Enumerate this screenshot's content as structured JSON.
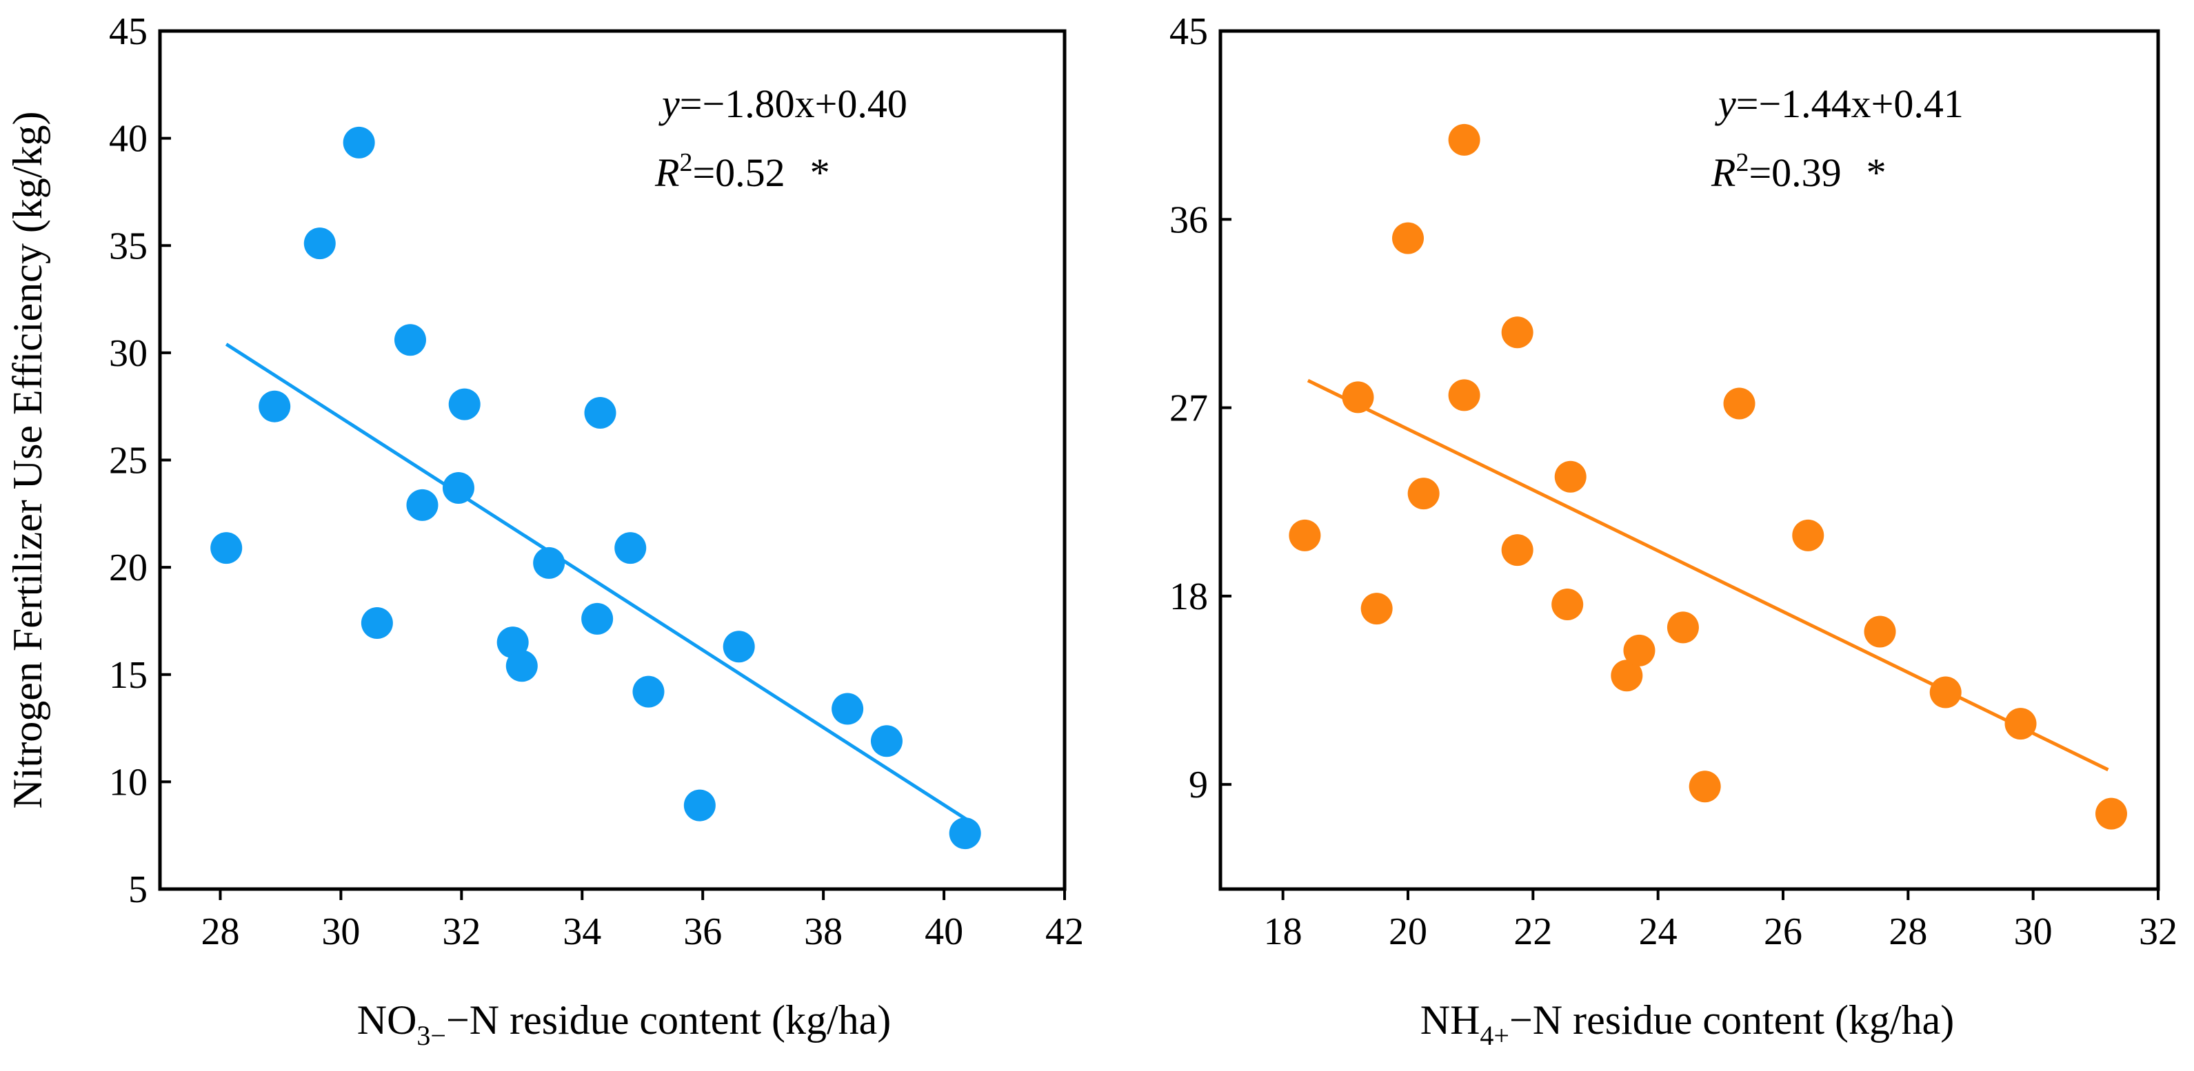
{
  "chart_data": [
    {
      "type": "scatter",
      "title": "",
      "xlabel_parts": [
        "NO",
        "3−",
        "−N residue content (kg/ha)"
      ],
      "ylabel": "Nitrogen Fertilizer Use Efficiency (kg/kg)",
      "xlim": [
        27,
        42
      ],
      "ylim": [
        5,
        45
      ],
      "xticks": [
        28,
        30,
        32,
        34,
        36,
        38,
        40,
        42
      ],
      "yticks": [
        5,
        10,
        15,
        20,
        25,
        30,
        35,
        40,
        45
      ],
      "color": "#0f9cf3",
      "grid": false,
      "equation": {
        "y_var": "y",
        "rhs": "=−1.80x+0.40",
        "r2_label": "R",
        "r2_sup": "2",
        "r2_value": "=0.52",
        "significance": "*"
      },
      "trendline": {
        "x": [
          28.1,
          40.4
        ],
        "y": [
          30.4,
          8.2
        ]
      },
      "points": {
        "x": [
          28.1,
          28.9,
          29.65,
          30.3,
          30.6,
          31.15,
          31.35,
          31.95,
          32.05,
          32.85,
          33.0,
          33.45,
          34.25,
          34.3,
          34.8,
          35.1,
          35.95,
          36.6,
          38.4,
          39.05,
          40.35
        ],
        "y": [
          20.9,
          27.5,
          35.1,
          39.8,
          17.4,
          30.6,
          22.9,
          23.7,
          27.6,
          16.5,
          15.4,
          20.2,
          17.6,
          27.2,
          20.9,
          14.2,
          8.9,
          16.3,
          13.4,
          11.9,
          7.6
        ]
      }
    },
    {
      "type": "scatter",
      "title": "",
      "xlabel_parts": [
        "NH",
        "4+",
        "−N residue content (kg/ha)"
      ],
      "ylabel": "",
      "xlim": [
        17,
        32
      ],
      "ylim": [
        4,
        45
      ],
      "xticks": [
        18,
        20,
        22,
        24,
        26,
        28,
        30,
        32
      ],
      "yticks": [
        9,
        18,
        27,
        36,
        45
      ],
      "color": "#fd8410",
      "grid": false,
      "equation": {
        "y_var": "y",
        "rhs": "=−1.44x+0.41",
        "r2_label": "R",
        "r2_sup": "2",
        "r2_value": "=0.39",
        "significance": "*"
      },
      "trendline": {
        "x": [
          18.4,
          31.2
        ],
        "y": [
          28.3,
          9.7
        ]
      },
      "points": {
        "x": [
          18.35,
          19.2,
          19.5,
          20.0,
          20.25,
          20.9,
          20.9,
          21.75,
          21.75,
          22.55,
          22.6,
          23.5,
          23.7,
          24.4,
          24.75,
          25.3,
          26.4,
          27.55,
          28.6,
          29.8,
          31.25
        ],
        "y": [
          20.9,
          27.5,
          17.4,
          35.1,
          22.9,
          39.8,
          27.6,
          20.2,
          30.6,
          17.6,
          23.7,
          14.2,
          15.4,
          16.5,
          8.9,
          27.2,
          20.9,
          16.3,
          13.4,
          11.9,
          7.6
        ]
      }
    }
  ]
}
